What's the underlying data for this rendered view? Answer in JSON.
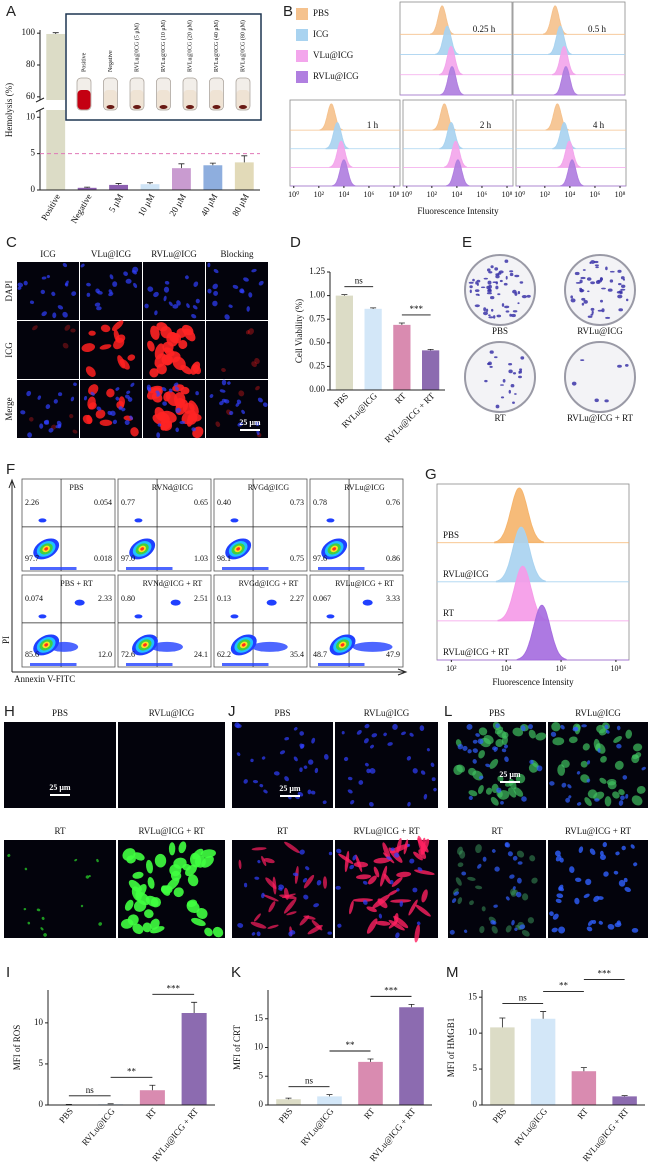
{
  "chart_data": [
    {
      "type": "bar",
      "label": "A",
      "ylabel": "Hemolysis (%)",
      "categories": [
        "Positive",
        "Negative",
        "5 μM",
        "10 μM",
        "20 μM",
        "40 μM",
        "80 μM"
      ],
      "values": [
        99.5,
        0.3,
        0.7,
        0.8,
        3.0,
        3.4,
        3.8
      ],
      "errors": [
        0.8,
        0.1,
        0.2,
        0.2,
        0.6,
        0.3,
        0.9
      ],
      "colors": [
        "#dcdcc6",
        "#8c5fb0",
        "#8c5fb0",
        "#cfe4f6",
        "#c99bd0",
        "#8eaede",
        "#e2dab8"
      ],
      "ylim": [
        0,
        102
      ],
      "yticks": [
        0,
        5,
        10,
        60,
        80,
        100
      ],
      "ybreak": [
        11,
        58
      ],
      "reference_line": 5,
      "inset_labels": [
        "Positive",
        "Negative",
        "RVLu@ICG (5 μM)",
        "RVLu@ICG (10 μM)",
        "RVLu@ICG (20 μM)",
        "RVLu@ICG (40 μM)",
        "RVLu@ICG (80 μM)"
      ]
    },
    {
      "type": "histogram",
      "label": "B",
      "legend": "upper left",
      "log_scale": true,
      "facets": [
        "0.25 h",
        "0.5 h",
        "1 h",
        "2 h",
        "4 h"
      ],
      "series": [
        {
          "name": "PBS",
          "color": "#f5c28e",
          "values": [
            1000,
            1000,
            1000,
            1000,
            1000
          ]
        },
        {
          "name": "ICG",
          "color": "#a9d3f0",
          "values": [
            2500,
            2500,
            3000,
            3500,
            3500
          ]
        },
        {
          "name": "VLu@ICG",
          "color": "#f3a6ec",
          "values": [
            5000,
            5000,
            6000,
            8000,
            9000
          ]
        },
        {
          "name": "RVLu@ICG",
          "color": "#b07fe0",
          "values": [
            6000,
            7000,
            10000,
            12000,
            15000
          ]
        }
      ],
      "xlim": [
        0.5,
        300000000
      ],
      "xticks": [
        {
          "value": 1,
          "label": "10⁰"
        },
        {
          "value": 100,
          "label": "10²"
        },
        {
          "value": 10000,
          "label": "10⁴"
        },
        {
          "value": 1000000,
          "label": "10⁶"
        },
        {
          "value": 100000000,
          "label": "10⁸"
        }
      ],
      "xlabel": "Fluorescence Intensity"
    },
    {
      "type": "bar",
      "label": "D",
      "ylabel": "Cell Viability (%)",
      "categories": [
        "PBS",
        "RVLu@ICG",
        "RT",
        "RVLu@ICG + RT"
      ],
      "values": [
        1.0,
        0.86,
        0.69,
        0.42
      ],
      "errors": [
        0.01,
        0.01,
        0.02,
        0.01
      ],
      "colors": [
        "#dcdcc6",
        "#d3e7f8",
        "#d98bb0",
        "#8c6bb0"
      ],
      "ylim": [
        0,
        1.25
      ],
      "yticks": [
        {
          "value": 0,
          "label": "0.00"
        },
        {
          "value": 0.25,
          "label": "0.25"
        },
        {
          "value": 0.5,
          "label": "0.50"
        },
        {
          "value": 0.75,
          "label": "0.75"
        },
        {
          "value": 1,
          "label": "1.00"
        },
        {
          "value": 1.25,
          "label": "1.25"
        }
      ],
      "brackets": [
        {
          "between": [
            "PBS",
            "RVLu@ICG"
          ],
          "text": "ns"
        },
        {
          "between": [
            "RT",
            "RVLu@ICG + RT"
          ],
          "text": "***"
        }
      ]
    },
    {
      "type": "histogram",
      "label": "G",
      "legend": "inline",
      "log_scale": true,
      "series": [
        {
          "name": "PBS",
          "color": "#f5b56e",
          "values": [
            30000
          ]
        },
        {
          "name": "RVLu@ICG",
          "color": "#a9d3f0",
          "values": [
            35000
          ]
        },
        {
          "name": "RT",
          "color": "#f59be8",
          "values": [
            40000
          ]
        },
        {
          "name": "RVLu@ICG + RT",
          "color": "#a66ee0",
          "values": [
            200000
          ]
        }
      ],
      "xlim": [
        30,
        300000000
      ],
      "xticks": [
        {
          "value": 100,
          "label": "10²"
        },
        {
          "value": 10000,
          "label": "10⁴"
        },
        {
          "value": 1000000,
          "label": "10⁶"
        },
        {
          "value": 100000000,
          "label": "10⁸"
        }
      ],
      "xlabel": "Fluorescence Intensity"
    },
    {
      "type": "bar",
      "label": "I",
      "ylabel": "MFI of ROS",
      "categories": [
        "PBS",
        "RVLu@ICG",
        "RT",
        "RVLu@ICG + RT"
      ],
      "values": [
        0.05,
        0.1,
        1.8,
        11.2
      ],
      "errors": [
        0.02,
        0.05,
        0.6,
        1.3
      ],
      "colors": [
        "#dcdcc6",
        "#d3e7f8",
        "#d98bb0",
        "#8c6bb0"
      ],
      "ylim": [
        0,
        14
      ],
      "yticks": [
        0,
        5,
        10
      ],
      "brackets": [
        {
          "between": [
            "PBS",
            "RVLu@ICG"
          ],
          "text": "ns"
        },
        {
          "between": [
            "RVLu@ICG",
            "RT"
          ],
          "text": "**"
        },
        {
          "between": [
            "RT",
            "RVLu@ICG + RT"
          ],
          "text": "***"
        }
      ]
    },
    {
      "type": "bar",
      "label": "K",
      "ylabel": "MFI of CRT",
      "categories": [
        "PBS",
        "RVLu@ICG",
        "RT",
        "RVLu@ICG + RT"
      ],
      "values": [
        1.0,
        1.5,
        7.5,
        17.0
      ],
      "errors": [
        0.2,
        0.3,
        0.5,
        0.5
      ],
      "colors": [
        "#dcdcc6",
        "#d3e7f8",
        "#d98bb0",
        "#8c6bb0"
      ],
      "ylim": [
        0,
        20
      ],
      "yticks": [
        0,
        5,
        10,
        15
      ],
      "brackets": [
        {
          "between": [
            "PBS",
            "RVLu@ICG"
          ],
          "text": "ns"
        },
        {
          "between": [
            "RVLu@ICG",
            "RT"
          ],
          "text": "**"
        },
        {
          "between": [
            "RT",
            "RVLu@ICG + RT"
          ],
          "text": "***"
        }
      ]
    },
    {
      "type": "bar",
      "label": "M",
      "ylabel": "MFI of HMGB1",
      "categories": [
        "PBS",
        "RVLu@ICG",
        "RT",
        "RVLu@ICG + RT"
      ],
      "values": [
        10.8,
        12.0,
        4.7,
        1.2
      ],
      "errors": [
        1.3,
        1.0,
        0.5,
        0.1
      ],
      "colors": [
        "#dcdcc6",
        "#d3e7f8",
        "#d98bb0",
        "#8c6bb0"
      ],
      "ylim": [
        0,
        16
      ],
      "yticks": [
        0,
        5,
        10,
        15
      ],
      "brackets": [
        {
          "between": [
            "PBS",
            "RVLu@ICG"
          ],
          "text": "ns"
        },
        {
          "between": [
            "RVLu@ICG",
            "RT"
          ],
          "text": "**"
        },
        {
          "between": [
            "RT",
            "RVLu@ICG + RT"
          ],
          "text": "***"
        }
      ]
    }
  ],
  "microscopy": [
    {
      "label": "C",
      "columns": [
        "ICG",
        "VLu@ICG",
        "RVLu@ICG",
        "Blocking"
      ],
      "rows": [
        "DAPI",
        "ICG",
        "Merge"
      ],
      "scale_bar": "25 μm"
    },
    {
      "label": "H",
      "panels": [
        "PBS",
        "RVLu@ICG",
        "RT",
        "RVLu@ICG + RT"
      ],
      "scale_bar": "25 μm"
    },
    {
      "label": "J",
      "panels": [
        "PBS",
        "RVLu@ICG",
        "RT",
        "RVLu@ICG + RT"
      ],
      "scale_bar": "25 μm"
    },
    {
      "label": "L",
      "panels": [
        "PBS",
        "RVLu@ICG",
        "RT",
        "RVLu@ICG + RT"
      ],
      "scale_bar": "25 μm"
    }
  ],
  "plates": {
    "label": "E",
    "names": [
      "PBS",
      "RVLu@ICG",
      "RT",
      "RVLu@ICG + RT"
    ]
  },
  "flow": {
    "label": "F",
    "ylabel": "PI",
    "xlabel": "Annexin V-FITC",
    "plots": [
      {
        "name": "PBS",
        "quadrants": [
          "2.26",
          "0.054",
          "97.7",
          "0.018"
        ]
      },
      {
        "name": "RVNd@ICG",
        "quadrants": [
          "0.77",
          "0.65",
          "97.0",
          "1.03"
        ]
      },
      {
        "name": "RVGd@ICG",
        "quadrants": [
          "0.40",
          "0.73",
          "98.1",
          "0.75"
        ]
      },
      {
        "name": "RVLu@ICG",
        "quadrants": [
          "0.78",
          "0.76",
          "97.6",
          "0.86"
        ]
      },
      {
        "name": "PBS + RT",
        "quadrants": [
          "0.074",
          "2.33",
          "85.6",
          "12.0"
        ]
      },
      {
        "name": "RVNd@ICG + RT",
        "quadrants": [
          "0.80",
          "2.51",
          "72.6",
          "24.1"
        ]
      },
      {
        "name": "RVGd@ICG + RT",
        "quadrants": [
          "0.13",
          "2.27",
          "62.2",
          "35.4"
        ]
      },
      {
        "name": "RVLu@ICG + RT",
        "quadrants": [
          "0.067",
          "3.33",
          "48.7",
          "47.9"
        ]
      }
    ]
  }
}
